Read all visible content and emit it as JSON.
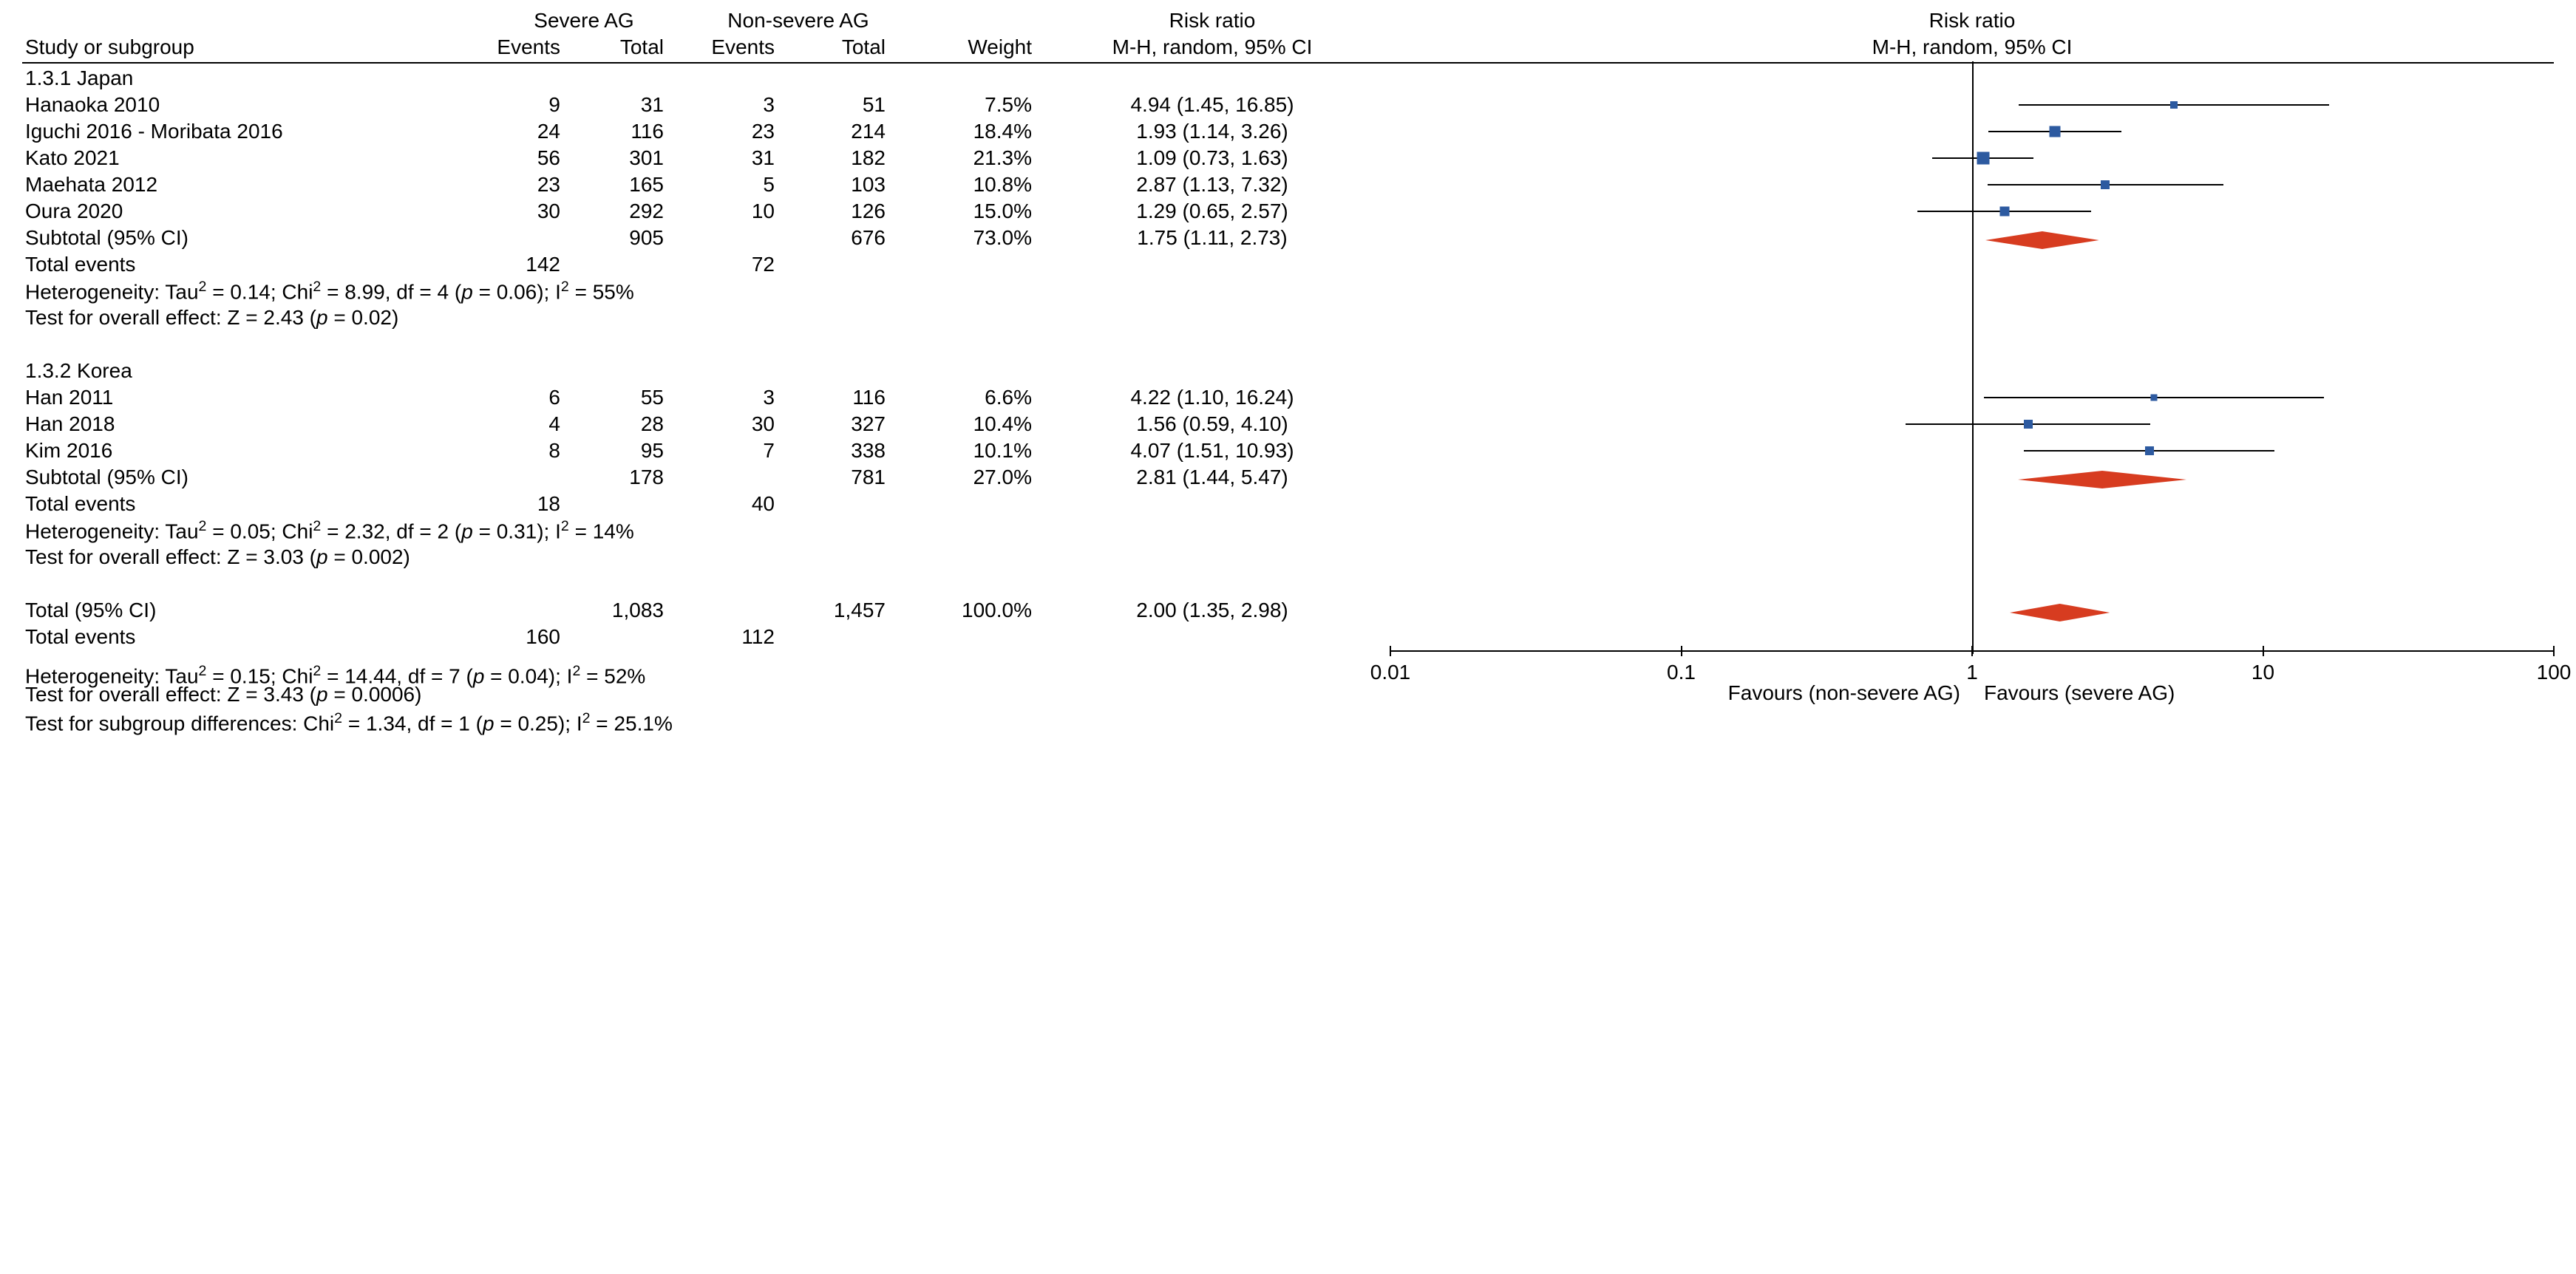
{
  "columns": {
    "study": "Study or subgroup",
    "severe_group": "Severe AG",
    "nonsevere_group": "Non-severe AG",
    "events": "Events",
    "total": "Total",
    "weight": "Weight",
    "rr_header1": "Risk ratio",
    "rr_header2": "M-H, random, 95% CI",
    "plot_header1": "Risk ratio",
    "plot_header2": "M-H, random, 95% CI"
  },
  "subgroups": [
    {
      "title": "1.3.1 Japan",
      "rows": [
        {
          "name": "Hanaoka 2010",
          "se": 9,
          "st": 31,
          "ne": 3,
          "nt": 51,
          "w": "7.5%",
          "rr": 4.94,
          "lo": 1.45,
          "hi": 16.85,
          "rr_txt": "4.94 (1.45, 16.85)",
          "msize": 10
        },
        {
          "name": "Iguchi 2016 - Moribata 2016",
          "se": 24,
          "st": 116,
          "ne": 23,
          "nt": 214,
          "w": "18.4%",
          "rr": 1.93,
          "lo": 1.14,
          "hi": 3.26,
          "rr_txt": "1.93 (1.14, 3.26)",
          "msize": 15
        },
        {
          "name": "Kato 2021",
          "se": 56,
          "st": 301,
          "ne": 31,
          "nt": 182,
          "w": "21.3%",
          "rr": 1.09,
          "lo": 0.73,
          "hi": 1.63,
          "rr_txt": "1.09 (0.73, 1.63)",
          "msize": 17
        },
        {
          "name": "Maehata 2012",
          "se": 23,
          "st": 165,
          "ne": 5,
          "nt": 103,
          "w": "10.8%",
          "rr": 2.87,
          "lo": 1.13,
          "hi": 7.32,
          "rr_txt": "2.87 (1.13, 7.32)",
          "msize": 12
        },
        {
          "name": "Oura 2020",
          "se": 30,
          "st": 292,
          "ne": 10,
          "nt": 126,
          "w": "15.0%",
          "rr": 1.29,
          "lo": 0.65,
          "hi": 2.57,
          "rr_txt": "1.29 (0.65, 2.57)",
          "msize": 13
        }
      ],
      "subtotal": {
        "label": "Subtotal (95% CI)",
        "st": 905,
        "nt": 676,
        "w": "73.0%",
        "rr": 1.75,
        "lo": 1.11,
        "hi": 2.73,
        "rr_txt": "1.75 (1.11, 2.73)"
      },
      "total_events": {
        "label": "Total events",
        "se": 142,
        "ne": 72
      },
      "het": "Heterogeneity: Tau<sup>2</sup> = 0.14; Chi<sup>2</sup> = 8.99, df = 4 (<i>p</i> = 0.06); I<sup>2</sup> = 55%",
      "z": "Test for overall effect: Z = 2.43 (<i>p</i> = 0.02)"
    },
    {
      "title": "1.3.2 Korea",
      "rows": [
        {
          "name": "Han 2011",
          "se": 6,
          "st": 55,
          "ne": 3,
          "nt": 116,
          "w": "6.6%",
          "rr": 4.22,
          "lo": 1.1,
          "hi": 16.24,
          "rr_txt": "4.22 (1.10, 16.24)",
          "msize": 9
        },
        {
          "name": "Han 2018",
          "se": 4,
          "st": 28,
          "ne": 30,
          "nt": 327,
          "w": "10.4%",
          "rr": 1.56,
          "lo": 0.59,
          "hi": 4.1,
          "rr_txt": "1.56 (0.59, 4.10)",
          "msize": 12
        },
        {
          "name": "Kim 2016",
          "se": 8,
          "st": 95,
          "ne": 7,
          "nt": 338,
          "w": "10.1%",
          "rr": 4.07,
          "lo": 1.51,
          "hi": 10.93,
          "rr_txt": "4.07 (1.51, 10.93)",
          "msize": 12
        }
      ],
      "subtotal": {
        "label": "Subtotal (95% CI)",
        "st": 178,
        "nt": 781,
        "w": "27.0%",
        "rr": 2.81,
        "lo": 1.44,
        "hi": 5.47,
        "rr_txt": "2.81 (1.44, 5.47)"
      },
      "total_events": {
        "label": "Total events",
        "se": 18,
        "ne": 40
      },
      "het": "Heterogeneity: Tau<sup>2</sup> = 0.05; Chi<sup>2</sup> = 2.32, df = 2 (<i>p</i> = 0.31); I<sup>2</sup> = 14%",
      "z": "Test for overall effect: Z = 3.03 (<i>p</i> = 0.002)"
    }
  ],
  "overall": {
    "total": {
      "label": "Total (95% CI)",
      "st": "1,083",
      "nt": "1,457",
      "w": "100.0%",
      "rr": 2.0,
      "lo": 1.35,
      "hi": 2.98,
      "rr_txt": "2.00 (1.35, 2.98)"
    },
    "total_events": {
      "label": "Total events",
      "se": 160,
      "ne": 112
    },
    "het": "Heterogeneity: Tau<sup>2</sup> = 0.15; Chi<sup>2</sup> = 14.44, df = 7 (<i>p</i> = 0.04); I<sup>2</sup> = 52%",
    "z": "Test for overall effect: Z = 3.43 (<i>p</i> = 0.0006)",
    "subdiff": "Test for subgroup differences: Chi<sup>2</sup> = 1.34, df = 1 (<i>p</i> = 0.25); I<sup>2</sup> = 25.1%"
  },
  "plot": {
    "log_min": -2,
    "log_max": 2,
    "ticks": [
      {
        "v": 0.01,
        "label": "0.01"
      },
      {
        "v": 0.1,
        "label": "0.1"
      },
      {
        "v": 1,
        "label": "1"
      },
      {
        "v": 10,
        "label": "10"
      },
      {
        "v": 100,
        "label": "100"
      }
    ],
    "favours_left": "Favours (non-severe AG)",
    "favours_right": "Favours (severe AG)",
    "marker_color": "#2d5aa0",
    "diamond_color": "#d73c20",
    "diamond_h": 24
  }
}
